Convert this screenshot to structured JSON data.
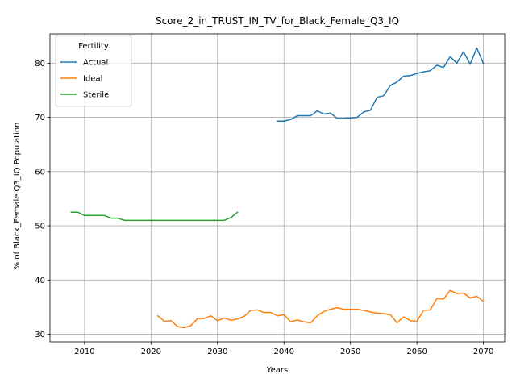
{
  "chart_data": {
    "type": "line",
    "title": "Score_2_in_TRUST_IN_TV_for_Black_Female_Q3_IQ",
    "xlabel": "Years",
    "ylabel": "% of Black_Female Q3_IQ Population",
    "xlim": [
      2004.8,
      2073.2
    ],
    "ylim": [
      28.6,
      85.4
    ],
    "xticks": [
      2010,
      2020,
      2030,
      2040,
      2050,
      2060,
      2070
    ],
    "yticks": [
      30,
      40,
      50,
      60,
      70,
      80
    ],
    "grid": true,
    "legend": {
      "title": "Fertility",
      "placement": "top-left"
    },
    "series": [
      {
        "name": "Actual",
        "color": "#1f77b4",
        "x": [
          2039,
          2040,
          2041,
          2042,
          2043,
          2044,
          2045,
          2046,
          2047,
          2048,
          2049,
          2050,
          2051,
          2052,
          2053,
          2054,
          2055,
          2056,
          2057,
          2058,
          2059,
          2060,
          2061,
          2062,
          2063,
          2064,
          2065,
          2066,
          2067,
          2068,
          2069,
          2070
        ],
        "y": [
          69.3,
          69.3,
          69.6,
          70.3,
          70.3,
          70.3,
          71.2,
          70.6,
          70.8,
          69.8,
          69.8,
          69.9,
          70.0,
          71.0,
          71.3,
          73.7,
          74.0,
          75.9,
          76.5,
          77.6,
          77.7,
          78.1,
          78.4,
          78.6,
          79.6,
          79.2,
          81.2,
          80.0,
          82.1,
          79.8,
          82.8,
          79.9
        ]
      },
      {
        "name": "Ideal",
        "color": "#ff7f0e",
        "x": [
          2021,
          2022,
          2023,
          2024,
          2025,
          2026,
          2027,
          2028,
          2029,
          2030,
          2031,
          2032,
          2033,
          2034,
          2035,
          2036,
          2037,
          2038,
          2039,
          2040,
          2041,
          2042,
          2043,
          2044,
          2045,
          2046,
          2047,
          2048,
          2049,
          2050,
          2051,
          2052,
          2053,
          2054,
          2055,
          2056,
          2057,
          2058,
          2059,
          2060,
          2061,
          2062,
          2063,
          2064,
          2065,
          2066,
          2067,
          2068,
          2069,
          2070
        ],
        "y": [
          33.4,
          32.4,
          32.5,
          31.4,
          31.2,
          31.6,
          32.9,
          32.9,
          33.4,
          32.5,
          33.0,
          32.6,
          32.8,
          33.3,
          34.4,
          34.5,
          34.0,
          34.0,
          33.4,
          33.6,
          32.3,
          32.6,
          32.3,
          32.1,
          33.4,
          34.2,
          34.6,
          34.9,
          34.6,
          34.6,
          34.6,
          34.4,
          34.1,
          33.9,
          33.8,
          33.6,
          32.1,
          33.2,
          32.5,
          32.4,
          34.4,
          34.5,
          36.6,
          36.5,
          38.1,
          37.5,
          37.6,
          36.7,
          37.0,
          36.1
        ]
      },
      {
        "name": "Sterile",
        "color": "#2ca02c",
        "x": [
          2008,
          2009,
          2010,
          2011,
          2012,
          2013,
          2014,
          2015,
          2016,
          2017,
          2018,
          2019,
          2020,
          2021,
          2022,
          2023,
          2024,
          2025,
          2026,
          2027,
          2028,
          2029,
          2030,
          2031,
          2032,
          2033
        ],
        "y": [
          52.5,
          52.5,
          51.9,
          51.9,
          51.9,
          51.9,
          51.4,
          51.4,
          51.0,
          51.0,
          51.0,
          51.0,
          51.0,
          51.0,
          51.0,
          51.0,
          51.0,
          51.0,
          51.0,
          51.0,
          51.0,
          51.0,
          51.0,
          51.0,
          51.5,
          52.5
        ]
      }
    ]
  }
}
